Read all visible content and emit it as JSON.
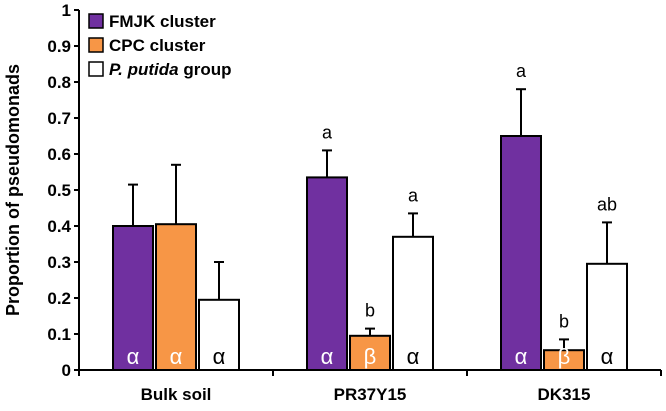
{
  "chart_data": {
    "type": "bar",
    "title": "",
    "xlabel": "",
    "ylabel": "Proportion of pseudomonads",
    "ylim": [
      0,
      1
    ],
    "yticks": [
      "0",
      "0.1",
      "0.2",
      "0.3",
      "0.4",
      "0.5",
      "0.6",
      "0.7",
      "0.8",
      "0.9",
      "1"
    ],
    "grid": false,
    "legend_position": "top-left",
    "categories": [
      "Bulk soil",
      "PR37Y15",
      "DK315"
    ],
    "series": [
      {
        "name": "FMJK cluster",
        "color": "#7030a0",
        "values": [
          0.4,
          0.535,
          0.65
        ],
        "errors": [
          0.115,
          0.075,
          0.13
        ],
        "labels_top": [
          "",
          "a",
          "a"
        ],
        "labels_inside": [
          "α",
          "α",
          "α"
        ]
      },
      {
        "name": "CPC cluster",
        "color": "#f79646",
        "values": [
          0.405,
          0.095,
          0.055
        ],
        "errors": [
          0.165,
          0.02,
          0.03
        ],
        "labels_top": [
          "",
          "b",
          "b"
        ],
        "labels_inside": [
          "α",
          "β",
          "β"
        ]
      },
      {
        "name": "P. putida group",
        "color": "#ffffff",
        "values": [
          0.195,
          0.37,
          0.295
        ],
        "errors": [
          0.105,
          0.065,
          0.115
        ],
        "labels_top": [
          "",
          "a",
          "ab"
        ],
        "labels_inside": [
          "α",
          "α",
          "α"
        ]
      }
    ],
    "legend": [
      {
        "italic": "",
        "rest": "FMJK cluster"
      },
      {
        "italic": "",
        "rest": "CPC cluster"
      },
      {
        "italic": "P. putida",
        "rest": " group"
      }
    ]
  }
}
